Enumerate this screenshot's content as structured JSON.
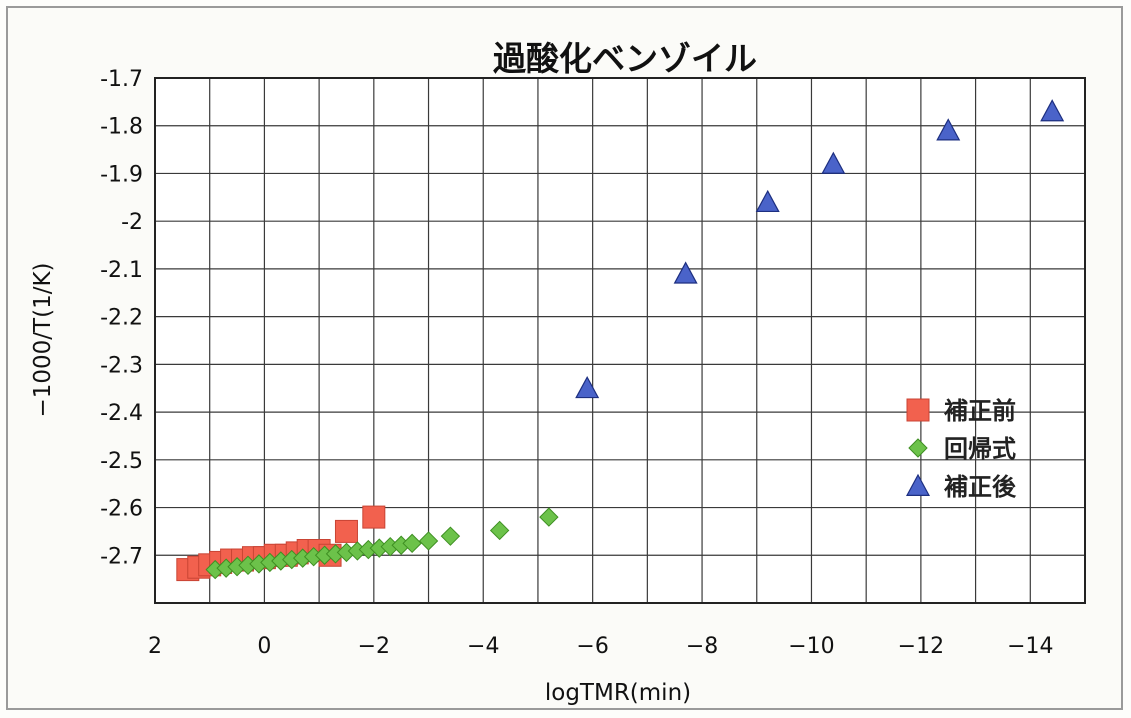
{
  "chart_data": {
    "type": "scatter",
    "title": "過酸化ベンゾイル",
    "xlabel": "logTMR(min)",
    "ylabel": "−1000/T(1/K)",
    "xlim": [
      2,
      -15
    ],
    "ylim": [
      -2.8,
      -1.7
    ],
    "x_ticks": [
      "2",
      "0",
      "−2",
      "−4",
      "−6",
      "−8",
      "−10",
      "−12",
      "−14"
    ],
    "y_ticks": [
      "-1.7",
      "-1.8",
      "-1.9",
      "-2",
      "-2.1",
      "-2.2",
      "-2.3",
      "-2.4",
      "-2.5",
      "-2.6",
      "-2.7"
    ],
    "grid": true,
    "legend_position": "right",
    "series": [
      {
        "name": "補正前",
        "marker": "square",
        "color": "#f2614e",
        "points": [
          [
            1.4,
            -2.73
          ],
          [
            1.2,
            -2.725
          ],
          [
            1.0,
            -2.72
          ],
          [
            0.8,
            -2.715
          ],
          [
            0.6,
            -2.71
          ],
          [
            0.4,
            -2.71
          ],
          [
            0.2,
            -2.705
          ],
          [
            0.0,
            -2.705
          ],
          [
            -0.2,
            -2.7
          ],
          [
            -0.4,
            -2.7
          ],
          [
            -0.6,
            -2.695
          ],
          [
            -0.8,
            -2.69
          ],
          [
            -1.0,
            -2.69
          ],
          [
            -1.2,
            -2.7
          ],
          [
            -1.5,
            -2.65
          ],
          [
            -2.0,
            -2.62
          ]
        ]
      },
      {
        "name": "回帰式",
        "marker": "diamond",
        "color": "#6cc24a",
        "points": [
          [
            0.9,
            -2.73
          ],
          [
            0.7,
            -2.727
          ],
          [
            0.5,
            -2.724
          ],
          [
            0.3,
            -2.721
          ],
          [
            0.1,
            -2.718
          ],
          [
            -0.1,
            -2.715
          ],
          [
            -0.3,
            -2.712
          ],
          [
            -0.5,
            -2.709
          ],
          [
            -0.7,
            -2.706
          ],
          [
            -0.9,
            -2.703
          ],
          [
            -1.1,
            -2.7
          ],
          [
            -1.3,
            -2.697
          ],
          [
            -1.5,
            -2.694
          ],
          [
            -1.7,
            -2.691
          ],
          [
            -1.9,
            -2.688
          ],
          [
            -2.1,
            -2.685
          ],
          [
            -2.3,
            -2.682
          ],
          [
            -2.5,
            -2.679
          ],
          [
            -2.7,
            -2.675
          ],
          [
            -3.0,
            -2.67
          ],
          [
            -3.4,
            -2.66
          ],
          [
            -4.3,
            -2.648
          ],
          [
            -5.2,
            -2.62
          ]
        ]
      },
      {
        "name": "補正後",
        "marker": "triangle",
        "color": "#4a63c9",
        "points": [
          [
            -5.9,
            -2.35
          ],
          [
            -7.7,
            -2.11
          ],
          [
            -9.2,
            -1.96
          ],
          [
            -10.4,
            -1.88
          ],
          [
            -12.5,
            -1.81
          ],
          [
            -14.4,
            -1.77
          ]
        ]
      }
    ]
  }
}
